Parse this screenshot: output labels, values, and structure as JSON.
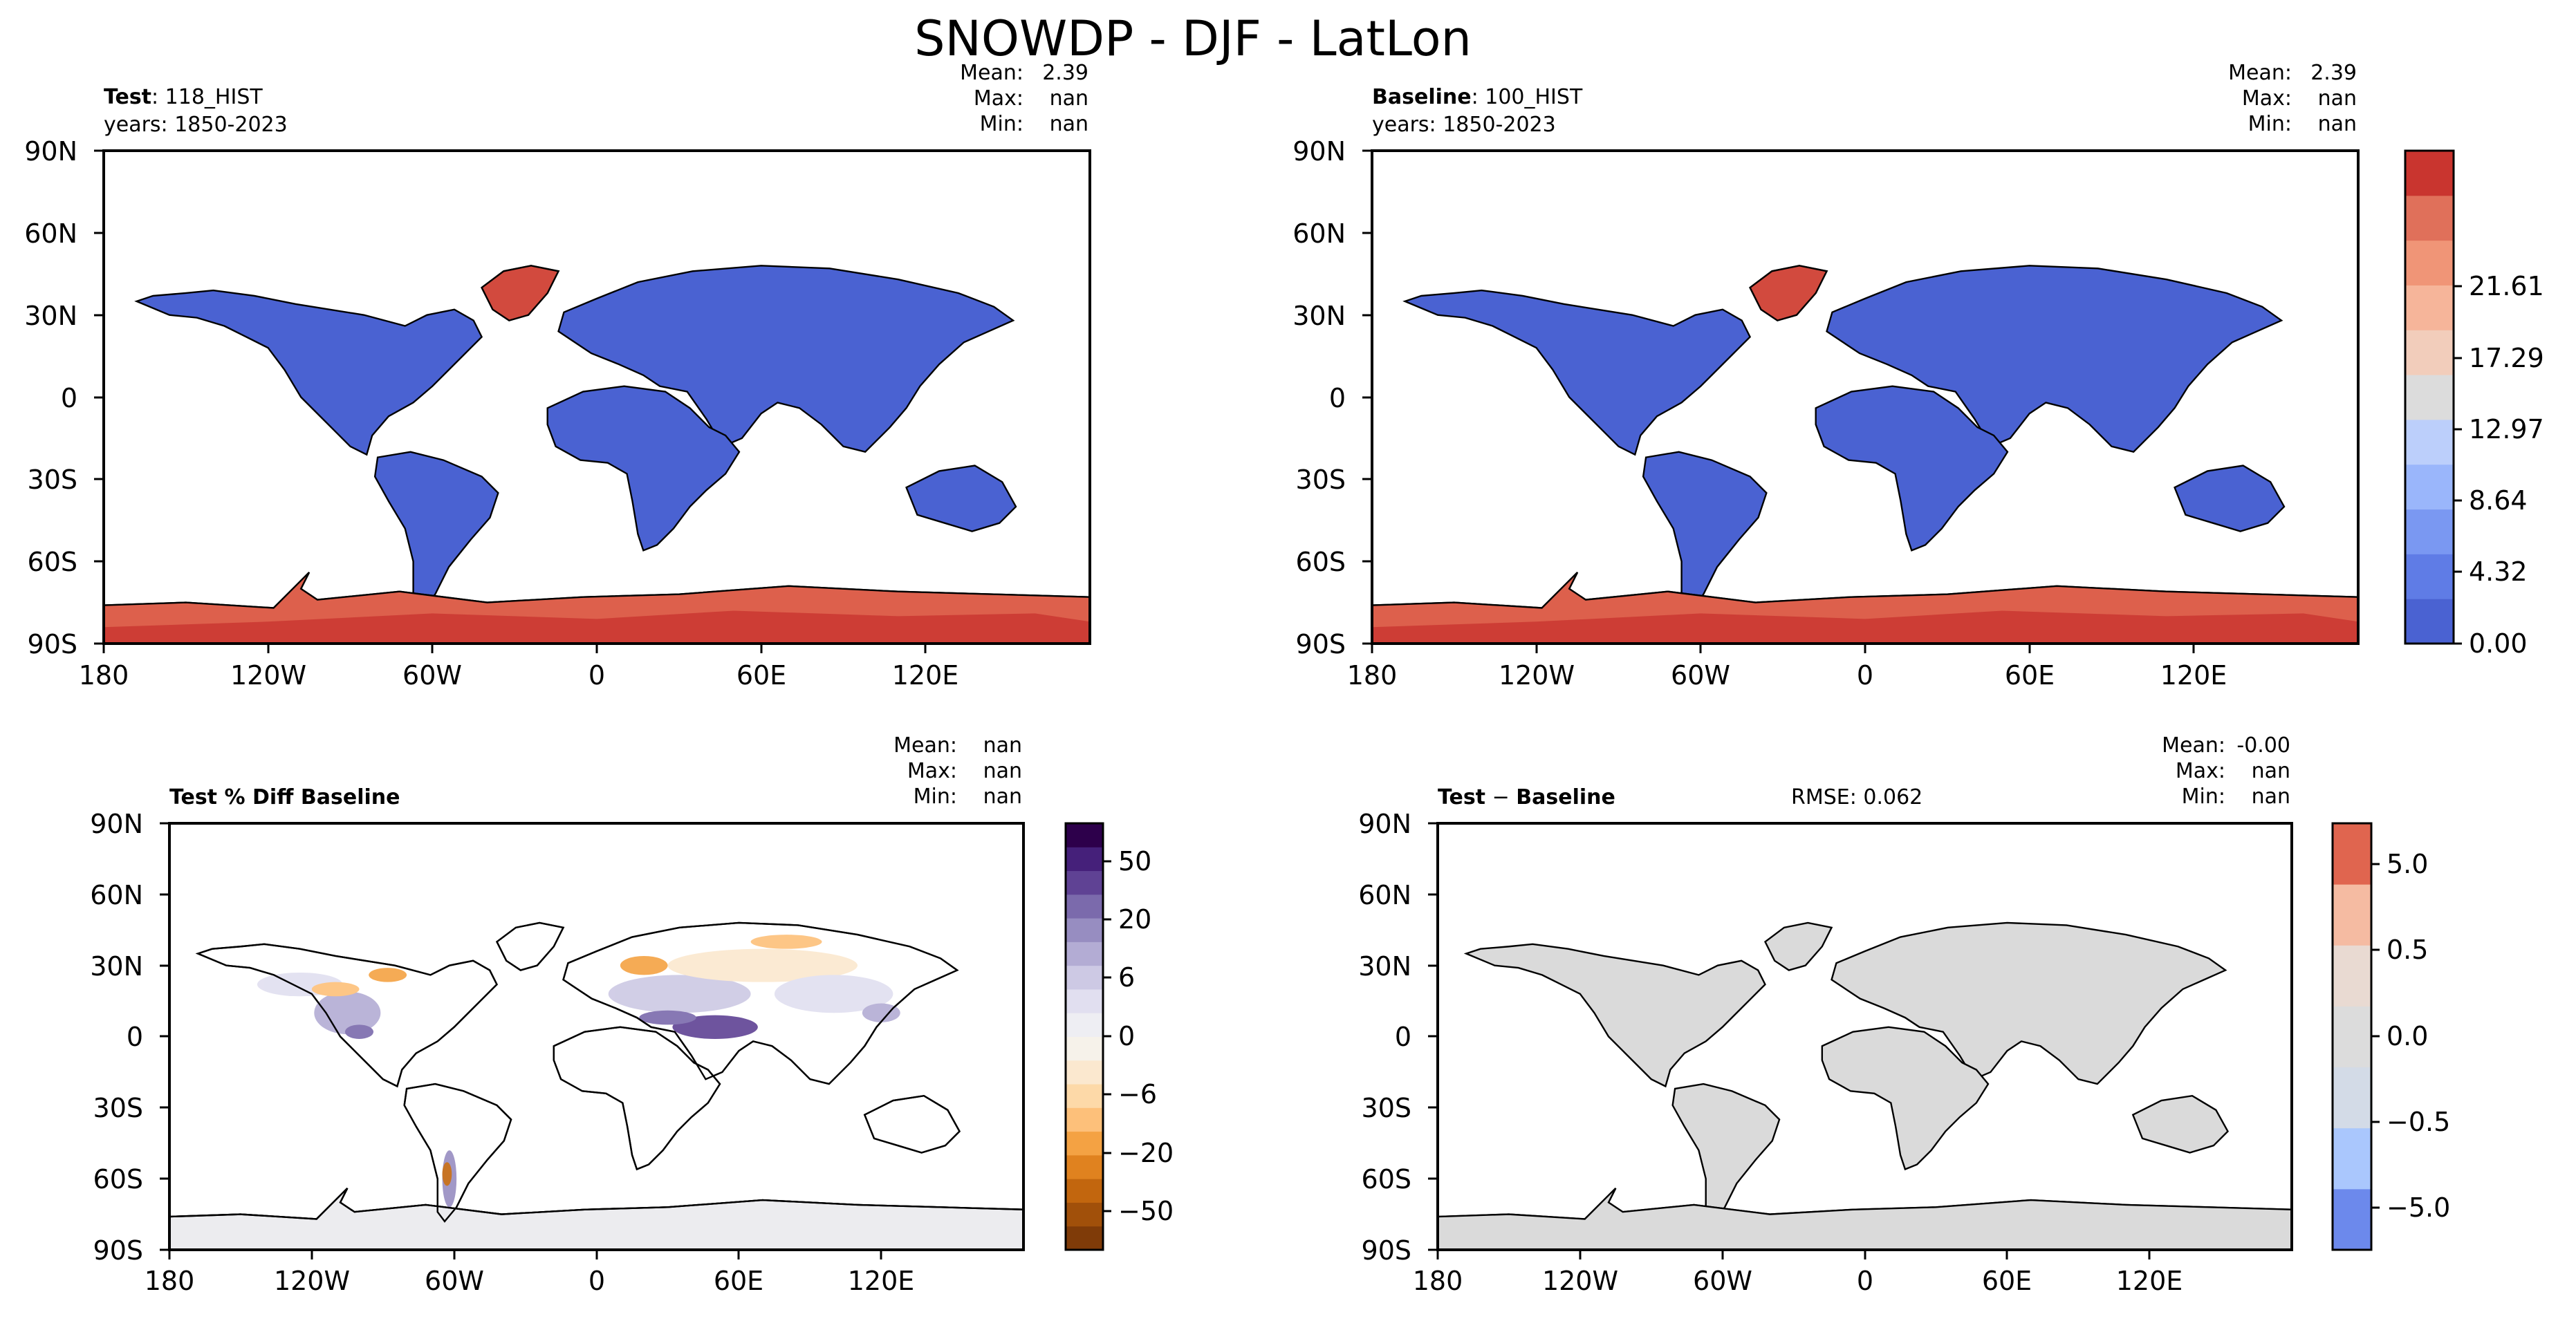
{
  "figure_title": "SNOWDP - DJF - LatLon",
  "chart_data": [
    {
      "type": "heatmap",
      "panel": "test",
      "title_bold": "Test",
      "title_rest": ": 118_HIST",
      "years": "years: 1850-2023",
      "stats": {
        "mean_label": "Mean:",
        "mean": "2.39",
        "max_label": "Max:",
        "max": "nan",
        "min_label": "Min:",
        "min": "nan"
      },
      "x_ticks": [
        "180",
        "120W",
        "60W",
        "0",
        "60E",
        "120E"
      ],
      "y_ticks": [
        "90N",
        "60N",
        "30N",
        "0",
        "30S",
        "60S",
        "90S"
      ],
      "fill_colors": {
        "land": "#4a62d2",
        "greenland": "#d24a3e",
        "antarctica": "#dd604c"
      }
    },
    {
      "type": "heatmap",
      "panel": "baseline",
      "title_bold": "Baseline",
      "title_rest": ": 100_HIST",
      "years": "years: 1850-2023",
      "stats": {
        "mean_label": "Mean:",
        "mean": "2.39",
        "max_label": "Max:",
        "max": "nan",
        "min_label": "Min:",
        "min": "nan"
      },
      "x_ticks": [
        "180",
        "120W",
        "60W",
        "0",
        "60E",
        "120E"
      ],
      "y_ticks": [
        "90N",
        "60N",
        "30N",
        "0",
        "30S",
        "60S",
        "90S"
      ],
      "fill_colors": {
        "land": "#4a62d2",
        "greenland": "#d24a3e",
        "antarctica": "#dd604c"
      },
      "colorbar": {
        "tick_labels": [
          "0.00",
          "4.32",
          "8.64",
          "12.97",
          "17.29",
          "21.61"
        ],
        "colors": [
          "#4a62d2",
          "#5f7ce6",
          "#7a98f2",
          "#9ab6fb",
          "#bccffb",
          "#dcdcdc",
          "#f2cdbb",
          "#f6b59a",
          "#f09577",
          "#e0705a",
          "#c9352f"
        ]
      }
    },
    {
      "type": "heatmap",
      "panel": "pct_diff",
      "title_bold": "Test % Diff Baseline",
      "stats": {
        "mean_label": "Mean:",
        "mean": "nan",
        "max_label": "Max:",
        "max": "nan",
        "min_label": "Min:",
        "min": "nan"
      },
      "x_ticks": [
        "180",
        "120W",
        "60W",
        "0",
        "60E",
        "120E"
      ],
      "y_ticks": [
        "90N",
        "60N",
        "30N",
        "0",
        "30S",
        "60S",
        "90S"
      ],
      "fill_colors": {
        "land": "#ffffff",
        "antarctica": "#ececef"
      },
      "colorbar": {
        "tick_labels": [
          "50",
          "20",
          "6",
          "0",
          "−6",
          "−20",
          "−50"
        ],
        "colors": [
          "#7f3b08",
          "#a1500a",
          "#c2660e",
          "#e0821f",
          "#f4a243",
          "#fdc07a",
          "#fdd9a8",
          "#fbe8cf",
          "#f6f2ea",
          "#eeeef3",
          "#e1dff0",
          "#cdc9e4",
          "#b3acd4",
          "#978dc1",
          "#7b6aac",
          "#5f4294",
          "#45207a",
          "#2d004b"
        ]
      }
    },
    {
      "type": "heatmap",
      "panel": "diff",
      "title_bold": "Test",
      "title_minus": " − ",
      "title_bold2": "Baseline",
      "rmse": "RMSE: 0.062",
      "stats": {
        "mean_label": "Mean:",
        "mean": "-0.00",
        "max_label": "Max:",
        "max": "nan",
        "min_label": "Min:",
        "min": "nan"
      },
      "x_ticks": [
        "180",
        "120W",
        "60W",
        "0",
        "60E",
        "120E"
      ],
      "y_ticks": [
        "90N",
        "60N",
        "30N",
        "0",
        "30S",
        "60S",
        "90S"
      ],
      "fill_colors": {
        "land": "#dadada",
        "antarctica": "#dadada"
      },
      "colorbar": {
        "tick_labels": [
          "5.0",
          "0.5",
          "0.0",
          "−0.5",
          "−5.0"
        ],
        "colors": [
          "#6c89ec",
          "#aac7fd",
          "#d3dbe7",
          "#dcdcdc",
          "#e9dad2",
          "#f5bba2",
          "#e0654f"
        ]
      }
    }
  ]
}
